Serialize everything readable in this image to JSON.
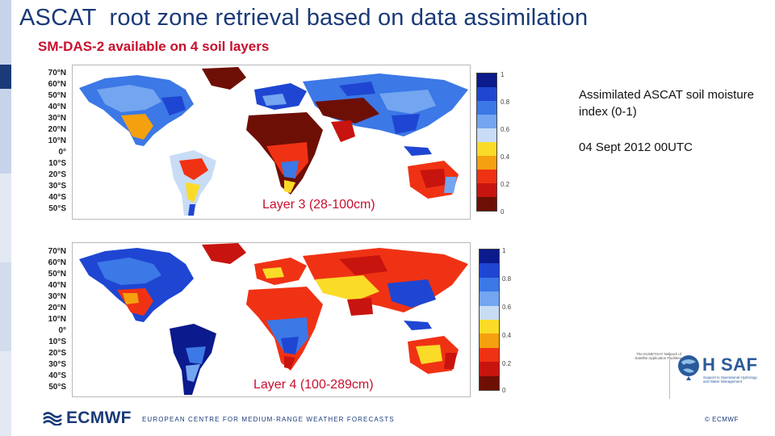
{
  "header": {
    "title": "ASCAT  root zone retrieval based on data assimilation",
    "subtitle": "SM-DAS-2 available on 4 soil layers"
  },
  "maps": [
    {
      "layer_label": "Layer 3 (28-100cm)",
      "lat_labels": [
        "70°N",
        "60°N",
        "50°N",
        "40°N",
        "30°N",
        "20°N",
        "10°N",
        "0°",
        "10°S",
        "20°S",
        "30°S",
        "40°S",
        "50°S"
      ],
      "colorbar_ticks": [
        "1",
        "0.8",
        "0.6",
        "0.4",
        "0.2",
        "0"
      ]
    },
    {
      "layer_label": "Layer 4 (100-289cm)",
      "lat_labels": [
        "70°N",
        "60°N",
        "50°N",
        "40°N",
        "30°N",
        "20°N",
        "10°N",
        "0°",
        "10°S",
        "20°S",
        "30°S",
        "40°S",
        "50°S"
      ],
      "colorbar_ticks": [
        "1",
        "0.8",
        "0.6",
        "0.4",
        "0.2",
        "0"
      ]
    }
  ],
  "legend": {
    "title": "Assimilated ASCAT soil moisture index (0-1)",
    "date": "04 Sept 2012 00UTC"
  },
  "colorbar_colors": [
    "#0b1a8c",
    "#1e46d2",
    "#3c78e6",
    "#73a5f0",
    "#c8dcf5",
    "#fadc28",
    "#f5a00f",
    "#f03214",
    "#c8140f",
    "#6e0f05"
  ],
  "footer": {
    "org_name": "EUROPEAN CENTRE FOR MEDIUM-RANGE WEATHER FORECASTS",
    "copyright": "© ECMWF",
    "logo_text": "ECMWF",
    "hsaf_logo_text": "H SAF",
    "hsaf_subtitle": "Support to Operational Hydrology and Water Management",
    "eumetsat_text": "The EUMETSAT Network of Satellite Application Facilities"
  }
}
